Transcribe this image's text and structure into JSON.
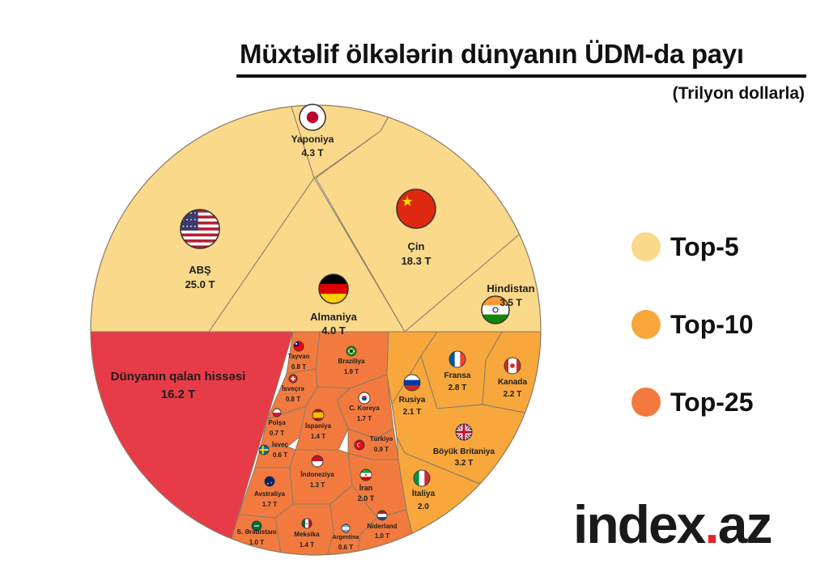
{
  "title": "Müxtəlif ölkələrin dünyanın ÜDM-da payı",
  "subtitle": "(Trilyon dollarla)",
  "colors": {
    "top5": "#fad98a",
    "top10": "#f7a73c",
    "top25": "#f27a3e",
    "rest": "#e83b48",
    "border": "#8a7a66"
  },
  "legend": [
    {
      "label": "Top-5",
      "color": "#fad98a"
    },
    {
      "label": "Top-10",
      "color": "#f7a73c"
    },
    {
      "label": "Top-25",
      "color": "#f27a3e"
    }
  ],
  "brand": {
    "text": "index",
    "dot": ".",
    "suffix": "az"
  },
  "chart_data": {
    "type": "voronoi treemap",
    "groups": [
      {
        "name": "Top-5",
        "color": "#fad98a",
        "items": [
          {
            "name": "ABŞ",
            "label": "25.0 T",
            "value": 25.0,
            "flag": "us-flag"
          },
          {
            "name": "Çin",
            "label": "18.3 T",
            "value": 18.3,
            "flag": "cn-flag"
          },
          {
            "name": "Yaponiya",
            "label": "4.3 T",
            "value": 4.3,
            "flag": "jp-flag"
          },
          {
            "name": "Almaniya",
            "label": "4.0 T",
            "value": 4.0,
            "flag": "de-flag"
          },
          {
            "name": "Hindistan",
            "label": "3.5 T",
            "value": 3.5,
            "flag": "in-flag"
          }
        ]
      },
      {
        "name": "Top-10",
        "color": "#f7a73c",
        "items": [
          {
            "name": "Böyük Britaniya",
            "label": "3.2 T",
            "value": 3.2,
            "flag": "gb-flag"
          },
          {
            "name": "Fransa",
            "label": "2.8 T",
            "value": 2.8,
            "flag": "fr-flag"
          },
          {
            "name": "Kanada",
            "label": "2.2 T",
            "value": 2.2,
            "flag": "ca-flag"
          },
          {
            "name": "Rusiya",
            "label": "2.1 T",
            "value": 2.1,
            "flag": "ru-flag"
          },
          {
            "name": "İtaliya",
            "label": "2.0",
            "value": 2.0,
            "flag": "it-flag"
          }
        ]
      },
      {
        "name": "Top-25",
        "color": "#f27a3e",
        "items": [
          {
            "name": "İran",
            "label": "2.0 T",
            "value": 2.0,
            "flag": "ir-flag"
          },
          {
            "name": "Braziliya",
            "label": "1.9 T",
            "value": 1.9,
            "flag": "br-flag"
          },
          {
            "name": "C. Koreya",
            "label": "1.7 T",
            "value": 1.7,
            "flag": "kr-flag"
          },
          {
            "name": "Avstraliya",
            "label": "1.7 T",
            "value": 1.7,
            "flag": "au-flag"
          },
          {
            "name": "İspaniya",
            "label": "1.4 T",
            "value": 1.4,
            "flag": "es-flag"
          },
          {
            "name": "Meksika",
            "label": "1.4 T",
            "value": 1.4,
            "flag": "mx-flag"
          },
          {
            "name": "İndoneziya",
            "label": "1.3 T",
            "value": 1.3,
            "flag": "id-flag"
          },
          {
            "name": "S. Ərəbistanı",
            "label": "1.0 T",
            "value": 1.0,
            "flag": "sa-flag"
          },
          {
            "name": "Niderland",
            "label": "1.0 T",
            "value": 1.0,
            "flag": "nl-flag"
          },
          {
            "name": "Türkiyə",
            "label": "0.9 T",
            "value": 0.9,
            "flag": "tr-flag"
          },
          {
            "name": "İsveçrə",
            "label": "0.8 T",
            "value": 0.8,
            "flag": "ch-flag"
          },
          {
            "name": "Tayvan",
            "label": "0.8 T",
            "value": 0.8,
            "flag": "tw-flag"
          },
          {
            "name": "Polşa",
            "label": "0.7 T",
            "value": 0.7,
            "flag": "pl-flag"
          },
          {
            "name": "İsveç",
            "label": "0.6 T",
            "value": 0.6,
            "flag": "se-flag"
          },
          {
            "name": "Argentina",
            "label": "0.6 T",
            "value": 0.6,
            "flag": "ar-flag"
          }
        ]
      },
      {
        "name": "Dünyanın qalan hissəsi",
        "color": "#e83b48",
        "items": [
          {
            "name": "Dünyanın qalan hissəsi",
            "label": "16.2 T",
            "value": 16.2
          }
        ]
      }
    ]
  }
}
